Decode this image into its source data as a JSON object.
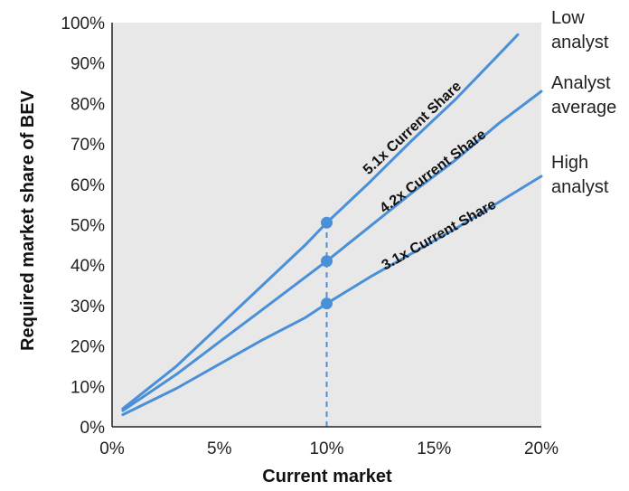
{
  "chart_data": {
    "type": "line",
    "xlabel": "Current market",
    "ylabel": "Required market share of BEV",
    "xlim": [
      0,
      20
    ],
    "ylim": [
      0,
      100
    ],
    "x_ticks": [
      "0%",
      "5%",
      "10%",
      "15%",
      "20%"
    ],
    "y_ticks": [
      "0%",
      "10%",
      "20%",
      "30%",
      "40%",
      "50%",
      "60%",
      "70%",
      "80%",
      "90%",
      "100%"
    ],
    "grid": false,
    "background": "#e8e8e8",
    "line_color": "#4a90d9",
    "series": [
      {
        "name": "Low analyst",
        "label": "5.1x Current Share",
        "x": [
          0.5,
          3,
          5,
          7,
          9,
          10,
          12,
          14,
          16,
          18,
          18.9
        ],
        "y": [
          4.5,
          15,
          25,
          35,
          45,
          50.5,
          60.5,
          71,
          81,
          92,
          97
        ]
      },
      {
        "name": "Analyst average",
        "label": "4.2x Current Share",
        "x": [
          0.5,
          3,
          5,
          7,
          9,
          10,
          12,
          14,
          16,
          18,
          20
        ],
        "y": [
          4,
          13,
          21,
          29,
          37,
          41,
          49.5,
          58,
          66,
          75,
          83
        ]
      },
      {
        "name": "High analyst",
        "label": "3.1x Current Share",
        "x": [
          0.5,
          3,
          5,
          7,
          9,
          10,
          12,
          14,
          16,
          18,
          20
        ],
        "y": [
          3,
          9.5,
          15.5,
          21.5,
          27,
          30.5,
          37,
          43,
          49,
          55.5,
          62
        ]
      }
    ],
    "markers": [
      {
        "x": 10,
        "y": 50.5
      },
      {
        "x": 10,
        "y": 41
      },
      {
        "x": 10,
        "y": 30.5
      }
    ],
    "reference_line": {
      "x": 10,
      "style": "dashed"
    }
  }
}
